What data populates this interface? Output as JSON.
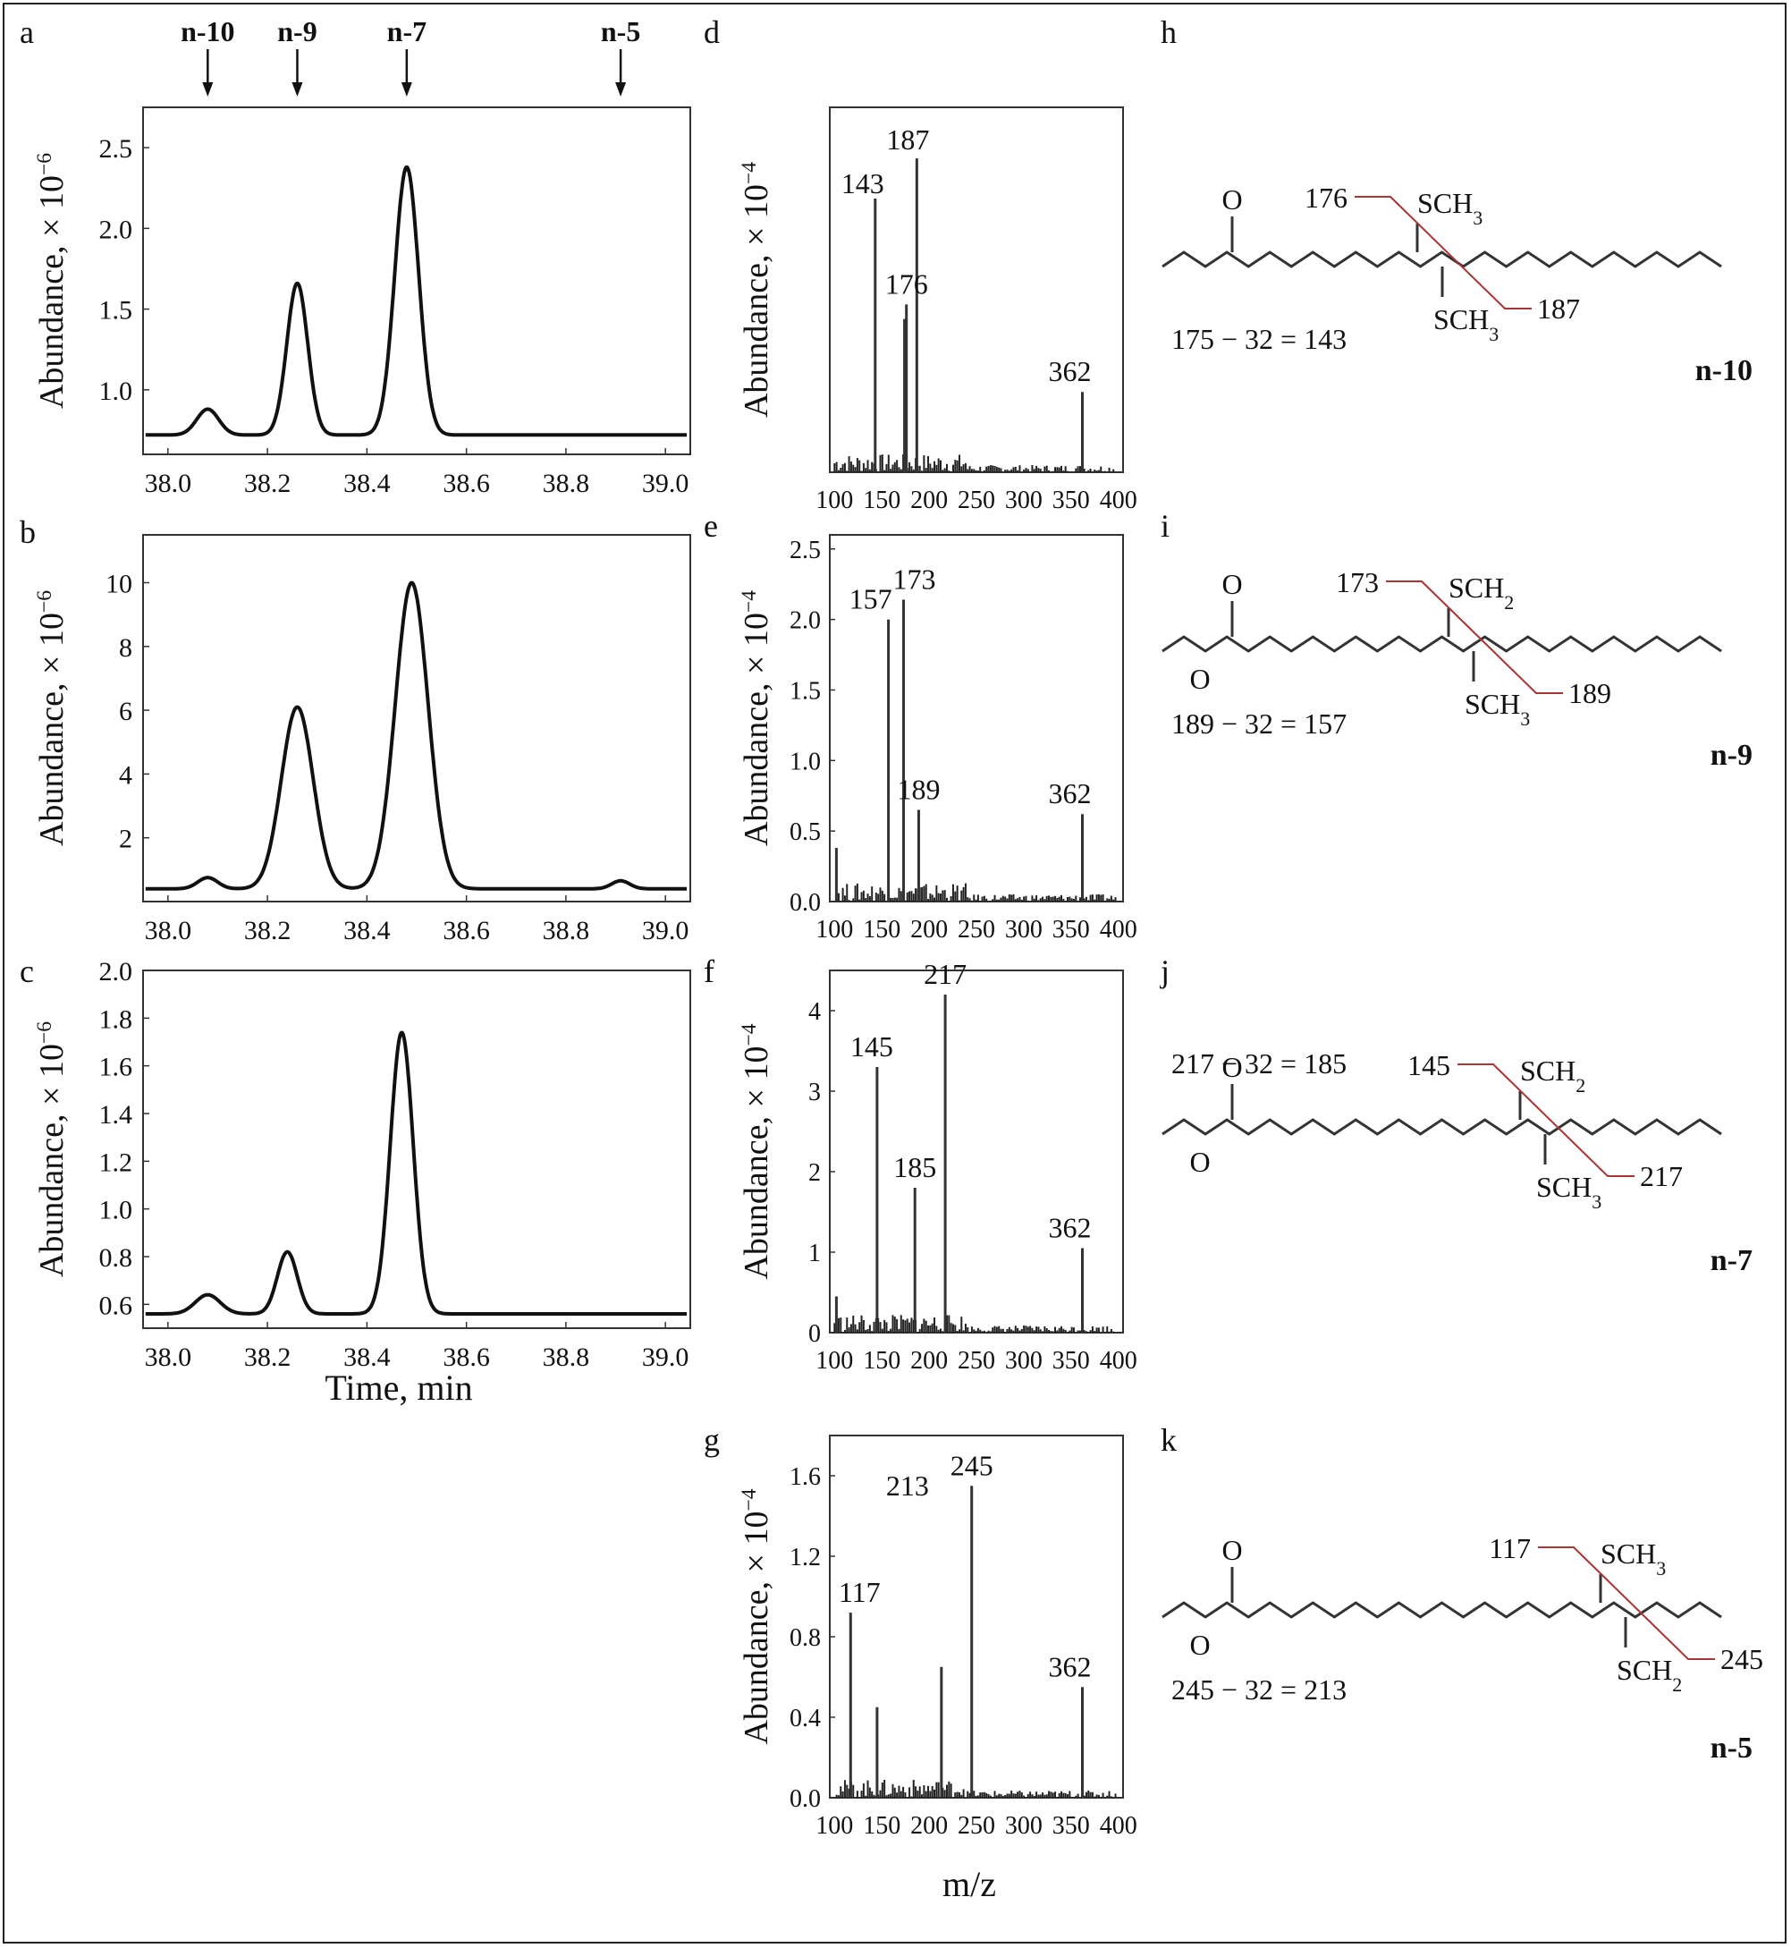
{
  "chromatograms": [
    {
      "panel": "a",
      "ylabel": "Abundance, × 10",
      "yexp": "−6",
      "xticks": [
        "38.0",
        "38.2",
        "38.4",
        "38.6",
        "38.8",
        "39.0"
      ],
      "yticks": [
        "1.0",
        "1.5",
        "2.0",
        "2.5"
      ],
      "xlabel": "",
      "markers": [
        "n-10",
        "n-9",
        "n-7",
        "n-5"
      ],
      "marker_times": [
        38.08,
        38.26,
        38.48,
        38.91
      ],
      "trace": {
        "ymin": 0.6,
        "ymax": 2.75,
        "baseline": 0.72,
        "peaks": [
          {
            "t": 38.08,
            "h": 0.88,
            "w": 0.022
          },
          {
            "t": 38.26,
            "h": 1.66,
            "w": 0.021
          },
          {
            "t": 38.48,
            "h": 2.38,
            "w": 0.024
          }
        ]
      }
    },
    {
      "panel": "b",
      "ylabel": "Abundance, × 10",
      "yexp": "−6",
      "xticks": [
        "38.0",
        "38.2",
        "38.4",
        "38.6",
        "38.8",
        "39.0"
      ],
      "yticks": [
        "2",
        "4",
        "6",
        "8",
        "10"
      ],
      "xlabel": "",
      "trace": {
        "ymin": 0,
        "ymax": 11.5,
        "baseline": 0.4,
        "peaks": [
          {
            "t": 38.08,
            "h": 0.75,
            "w": 0.02
          },
          {
            "t": 38.26,
            "h": 6.1,
            "w": 0.032
          },
          {
            "t": 38.49,
            "h": 10.0,
            "w": 0.033
          },
          {
            "t": 38.91,
            "h": 0.65,
            "w": 0.018
          }
        ]
      }
    },
    {
      "panel": "c",
      "ylabel": "Abundance, × 10",
      "yexp": "−6",
      "xticks": [
        "38.0",
        "38.2",
        "38.4",
        "38.6",
        "38.8",
        "39.0"
      ],
      "yticks": [
        "0.6",
        "0.8",
        "1.0",
        "1.2",
        "1.4",
        "1.6",
        "1.8",
        "2.0"
      ],
      "xlabel": "Time, min",
      "trace": {
        "ymin": 0.5,
        "ymax": 2.0,
        "baseline": 0.56,
        "peaks": [
          {
            "t": 38.08,
            "h": 0.64,
            "w": 0.025
          },
          {
            "t": 38.24,
            "h": 0.82,
            "w": 0.02
          },
          {
            "t": 38.47,
            "h": 1.74,
            "w": 0.023
          }
        ]
      }
    }
  ],
  "spectra": [
    {
      "panel": "d",
      "ylabel": "Abundance, × 10",
      "yexp": "−4",
      "xticks": [
        "100",
        "150",
        "200",
        "250",
        "300",
        "350",
        "400"
      ],
      "yticks": [],
      "ymax": 1.0,
      "peaks": [
        {
          "mz": 143,
          "y": 0.75
        },
        {
          "mz": 174,
          "y": 0.42
        },
        {
          "mz": 176,
          "y": 0.46
        },
        {
          "mz": 187,
          "y": 0.86
        },
        {
          "mz": 362,
          "y": 0.22
        }
      ],
      "labels": [
        {
          "text": "143",
          "mz": 143,
          "y": 0.75,
          "color": "#3b3f9a"
        },
        {
          "text": "187",
          "mz": 187,
          "y": 0.86,
          "color": "#d92026"
        },
        {
          "text": "176",
          "mz": 176,
          "y": 0.46,
          "color": "#d92026"
        },
        {
          "text": "362",
          "mz": 362,
          "y": 0.22,
          "color": "#111111"
        }
      ]
    },
    {
      "panel": "e",
      "ylabel": "Abundance, × 10",
      "yexp": "−4",
      "xticks": [
        "100",
        "150",
        "200",
        "250",
        "300",
        "350",
        "400"
      ],
      "yticks": [
        "0.0",
        "0.5",
        "1.0",
        "1.5",
        "2.0",
        "2.5"
      ],
      "ymax": 2.6,
      "peaks": [
        {
          "mz": 102,
          "y": 0.38
        },
        {
          "mz": 157,
          "y": 2.0
        },
        {
          "mz": 173,
          "y": 2.14
        },
        {
          "mz": 189,
          "y": 0.65
        },
        {
          "mz": 362,
          "y": 0.62
        }
      ],
      "labels": [
        {
          "text": "157",
          "mz": 157,
          "y": 2.0,
          "color": "#3b3f9a"
        },
        {
          "text": "173",
          "mz": 173,
          "y": 2.14,
          "color": "#d92026"
        },
        {
          "text": "189",
          "mz": 189,
          "y": 0.65,
          "color": "#d92026"
        },
        {
          "text": "362",
          "mz": 362,
          "y": 0.62,
          "color": "#111111"
        }
      ]
    },
    {
      "panel": "f",
      "ylabel": "Abundance, × 10",
      "yexp": "−4",
      "xticks": [
        "100",
        "150",
        "200",
        "250",
        "300",
        "350",
        "400"
      ],
      "yticks": [
        "0",
        "1",
        "2",
        "3",
        "4"
      ],
      "ymax": 4.5,
      "peaks": [
        {
          "mz": 102,
          "y": 0.45
        },
        {
          "mz": 145,
          "y": 3.3
        },
        {
          "mz": 185,
          "y": 1.8
        },
        {
          "mz": 217,
          "y": 4.2
        },
        {
          "mz": 362,
          "y": 1.05
        }
      ],
      "labels": [
        {
          "text": "145",
          "mz": 145,
          "y": 3.3,
          "color": "#d92026"
        },
        {
          "text": "217",
          "mz": 217,
          "y": 4.2,
          "color": "#d92026"
        },
        {
          "text": "185",
          "mz": 185,
          "y": 1.8,
          "color": "#3b3f9a"
        },
        {
          "text": "362",
          "mz": 362,
          "y": 1.05,
          "color": "#111111"
        }
      ]
    },
    {
      "panel": "g",
      "ylabel": "Abundance, × 10",
      "yexp": "−4",
      "xticks": [
        "100",
        "150",
        "200",
        "250",
        "300",
        "350",
        "400"
      ],
      "yticks": [
        "0.0",
        "0.4",
        "0.8",
        "1.2",
        "1.6"
      ],
      "xlabel": "m/z",
      "ymax": 1.8,
      "peaks": [
        {
          "mz": 117,
          "y": 0.92
        },
        {
          "mz": 145,
          "y": 0.45
        },
        {
          "mz": 213,
          "y": 0.65
        },
        {
          "mz": 245,
          "y": 1.55
        },
        {
          "mz": 362,
          "y": 0.55
        }
      ],
      "labels": [
        {
          "text": "117",
          "mz": 117,
          "y": 0.92,
          "color": "#d92026"
        },
        {
          "text": "213",
          "mz": 213,
          "y": 1.45,
          "color": "#3b3f9a"
        },
        {
          "text": "245",
          "mz": 245,
          "y": 1.55,
          "color": "#d92026"
        },
        {
          "text": "362",
          "mz": 362,
          "y": 0.55,
          "color": "#111111"
        }
      ]
    }
  ],
  "structures": [
    {
      "panel": "h",
      "name": "n-10",
      "atoms": {
        "carbonyl_O": "O",
        "upper_group": "SCH",
        "upper_sub": "3",
        "lower_group": "SCH",
        "lower_sub": "3"
      },
      "fragments": [
        {
          "text": "176",
          "color": "#d92026"
        },
        {
          "text": "187",
          "color": "#d92026"
        },
        {
          "text": "175 − 32 = 143",
          "color": "#3b3f9a"
        }
      ]
    },
    {
      "panel": "i",
      "name": "n-9",
      "atoms": {
        "carbonyl_O": "O",
        "ester_O": "O",
        "upper_group": "SCH",
        "upper_sub": "2",
        "lower_group": "SCH",
        "lower_sub": "3"
      },
      "fragments": [
        {
          "text": "173",
          "color": "#d92026"
        },
        {
          "text": "189",
          "color": "#d92026"
        },
        {
          "text": "189 − 32 = 157",
          "color": "#3b3f9a"
        }
      ]
    },
    {
      "panel": "j",
      "name": "n-7",
      "atoms": {
        "carbonyl_O": "O",
        "ester_O": "O",
        "upper_group": "SCH",
        "upper_sub": "2",
        "lower_group": "SCH",
        "lower_sub": "3"
      },
      "fragments": [
        {
          "text": "145",
          "color": "#d92026"
        },
        {
          "text": "217",
          "color": "#d92026"
        },
        {
          "text": "217 − 32 = 185",
          "color": "#3b3f9a"
        }
      ]
    },
    {
      "panel": "k",
      "name": "n-5",
      "atoms": {
        "carbonyl_O": "O",
        "ester_O": "O",
        "upper_group": "SCH",
        "upper_sub": "3",
        "lower_group": "SCH",
        "lower_sub": "2"
      },
      "fragments": [
        {
          "text": "117",
          "color": "#d92026"
        },
        {
          "text": "245",
          "color": "#d92026"
        },
        {
          "text": "245 − 32 = 213",
          "color": "#3b3f9a"
        }
      ]
    }
  ],
  "chart_data": [
    {
      "type": "line",
      "panel": "a",
      "title": "",
      "xlabel": "",
      "ylabel": "Abundance, × 10−6",
      "xlim": [
        37.95,
        39.05
      ],
      "ylim": [
        0.6,
        2.75
      ],
      "grid": false,
      "series": [
        {
          "name": "",
          "x": [
            38.08,
            38.26,
            38.48
          ],
          "values": [
            0.88,
            1.66,
            2.38
          ]
        }
      ]
    },
    {
      "type": "line",
      "panel": "b",
      "title": "",
      "xlabel": "",
      "ylabel": "Abundance, × 10−6",
      "xlim": [
        37.95,
        39.05
      ],
      "ylim": [
        0,
        11.5
      ],
      "grid": false,
      "series": [
        {
          "name": "",
          "x": [
            38.08,
            38.26,
            38.49,
            38.91
          ],
          "values": [
            0.75,
            6.1,
            10.0,
            0.65
          ]
        }
      ]
    },
    {
      "type": "line",
      "panel": "c",
      "title": "",
      "xlabel": "Time, min",
      "ylabel": "Abundance, × 10−6",
      "xlim": [
        37.95,
        39.05
      ],
      "ylim": [
        0.5,
        2.0
      ],
      "grid": false,
      "series": [
        {
          "name": "",
          "x": [
            38.08,
            38.24,
            38.47
          ],
          "values": [
            0.64,
            0.82,
            1.74
          ]
        }
      ]
    },
    {
      "type": "bar",
      "panel": "d",
      "title": "",
      "xlabel": "",
      "ylabel": "Abundance, × 10−4",
      "xlim": [
        95,
        405
      ],
      "categories": [
        "143",
        "176",
        "187",
        "362"
      ],
      "values": [
        0.75,
        0.46,
        0.86,
        0.22
      ]
    },
    {
      "type": "bar",
      "panel": "e",
      "title": "",
      "xlabel": "",
      "ylabel": "Abundance, × 10−4",
      "xlim": [
        95,
        405
      ],
      "ylim": [
        0,
        2.6
      ],
      "categories": [
        "157",
        "173",
        "189",
        "362"
      ],
      "values": [
        2.0,
        2.14,
        0.65,
        0.62
      ]
    },
    {
      "type": "bar",
      "panel": "f",
      "title": "",
      "xlabel": "",
      "ylabel": "Abundance, × 10−4",
      "xlim": [
        95,
        405
      ],
      "ylim": [
        0,
        4.5
      ],
      "categories": [
        "145",
        "185",
        "217",
        "362"
      ],
      "values": [
        3.3,
        1.8,
        4.2,
        1.05
      ]
    },
    {
      "type": "bar",
      "panel": "g",
      "title": "",
      "xlabel": "m/z",
      "ylabel": "Abundance, × 10−4",
      "xlim": [
        95,
        405
      ],
      "ylim": [
        0,
        1.8
      ],
      "categories": [
        "117",
        "213",
        "245",
        "362"
      ],
      "values": [
        0.92,
        0.65,
        1.55,
        0.55
      ]
    }
  ]
}
